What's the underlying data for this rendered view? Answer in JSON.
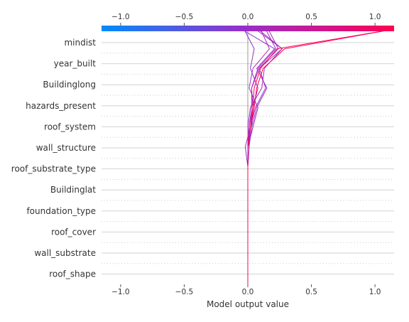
{
  "chart_data": {
    "type": "line",
    "title": "",
    "xlabel": "Model output value",
    "ylabel": "",
    "xlim": [
      -1.15,
      1.15
    ],
    "xticks": [
      -1.0,
      -0.5,
      0.0,
      0.5,
      1.0
    ],
    "xtick_labels": [
      "−1.0",
      "−0.5",
      "0.0",
      "0.5",
      "1.0"
    ],
    "base_value": 0.0,
    "features": [
      "mindist",
      "year_built",
      "Buildinglong",
      "hazards_present",
      "roof_system",
      "wall_structure",
      "roof_substrate_type",
      "Buildinglat",
      "foundation_type",
      "roof_cover",
      "wall_substrate",
      "roof_shape"
    ],
    "colormap": {
      "low": "#008bfb",
      "mid": "#9b2cc8",
      "high": "#ff0052"
    },
    "grid": true,
    "series": [
      {
        "values": [
          0.0,
          0.0,
          0.0,
          0.0,
          0.0,
          0.0,
          0.0,
          0.0,
          0.01,
          0.04,
          0.08,
          0.02,
          0.05,
          -0.03
        ]
      },
      {
        "values": [
          0.0,
          0.0,
          0.0,
          0.0,
          0.0,
          0.0,
          0.0,
          0.01,
          0.03,
          0.07,
          0.15,
          0.07,
          0.21,
          -0.05
        ]
      },
      {
        "values": [
          0.0,
          0.0,
          0.0,
          0.0,
          0.0,
          0.0,
          0.0,
          -0.02,
          0.02,
          0.06,
          0.14,
          0.09,
          0.27,
          0.06
        ]
      },
      {
        "values": [
          0.0,
          0.0,
          0.0,
          0.0,
          0.0,
          0.0,
          0.0,
          0.01,
          0.0,
          0.02,
          0.11,
          0.13,
          0.27,
          0.08
        ]
      },
      {
        "values": [
          0.0,
          0.0,
          0.0,
          0.0,
          0.0,
          0.0,
          0.0,
          0.0,
          0.04,
          0.08,
          0.01,
          0.04,
          0.17,
          0.1
        ]
      },
      {
        "values": [
          0.0,
          0.0,
          0.0,
          0.0,
          0.0,
          0.0,
          0.0,
          0.0,
          0.03,
          0.04,
          0.03,
          0.08,
          0.22,
          0.14
        ]
      },
      {
        "values": [
          0.0,
          0.0,
          0.0,
          0.0,
          0.0,
          0.0,
          0.0,
          0.0,
          0.01,
          0.03,
          0.03,
          0.09,
          0.24,
          0.16
        ]
      },
      {
        "values": [
          0.0,
          0.0,
          0.0,
          0.0,
          0.0,
          0.0,
          0.0,
          0.0,
          0.02,
          0.05,
          0.07,
          0.12,
          0.29,
          1.15
        ]
      },
      {
        "values": [
          0.0,
          0.0,
          0.0,
          0.0,
          0.0,
          0.0,
          0.0,
          0.0,
          0.02,
          0.04,
          0.05,
          0.1,
          0.23,
          1.15
        ]
      }
    ]
  }
}
